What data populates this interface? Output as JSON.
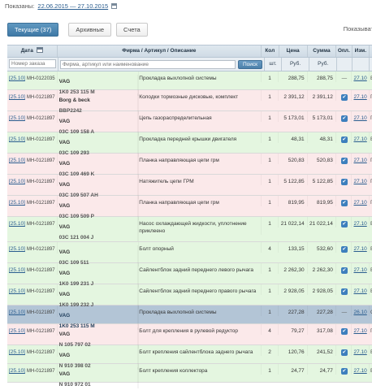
{
  "header": {
    "shown_label": "Показаны:",
    "date_range": "22.06.2015 — 27.10.2015",
    "show_right": "Показыват"
  },
  "tabs": [
    {
      "label": "Текущие (37)",
      "active": true
    },
    {
      "label": "Архивные",
      "active": false
    },
    {
      "label": "Счета",
      "active": false
    }
  ],
  "columns": {
    "date": "Дата",
    "name": "Фирма / Артикул / Описание",
    "qty": "Кол",
    "price": "Цена",
    "sum": "Сумма",
    "opl": "Опл.",
    "izm": "Изм."
  },
  "subheader": {
    "order_placeholder": "Номер заказа",
    "search_placeholder": "Фирма, артикул или наименование",
    "search_button": "Поиск",
    "qty_unit": "шт.",
    "price_unit": "Руб.",
    "sum_unit": "Руб."
  },
  "rows": [
    {
      "color": "green",
      "date": "[25.10]",
      "order": "МН-0122035",
      "brand": "VAG",
      "art": "1K0 253 115 M",
      "desc": "Прокладка выхлопной системы",
      "qty": "1",
      "price": "288,75",
      "sum": "288,75",
      "paid": false,
      "izm": "27.10",
      "st": "В"
    },
    {
      "color": "pink",
      "date": "[25.10]",
      "order": "МН-0121897",
      "brand": "Borg & beck",
      "art": "BBP2242",
      "desc": "Колодки тормозные дисковые, комплект",
      "qty": "1",
      "price": "2 391,12",
      "sum": "2 391,12",
      "paid": true,
      "izm": "27.10",
      "st": "П"
    },
    {
      "color": "pink",
      "date": "[25.10]",
      "order": "МН-0121897",
      "brand": "VAG",
      "art": "03C 109 158 A",
      "desc": "Цепь газораспределительная",
      "qty": "1",
      "price": "5 173,01",
      "sum": "5 173,01",
      "paid": true,
      "izm": "27.10",
      "st": "П"
    },
    {
      "color": "green",
      "date": "[25.10]",
      "order": "МН-0121897",
      "brand": "VAG",
      "art": "03C 109 293",
      "desc": "Прокладка передней крышки двигателя",
      "qty": "1",
      "price": "48,31",
      "sum": "48,31",
      "paid": true,
      "izm": "27.10",
      "st": "В"
    },
    {
      "color": "pink",
      "date": "[25.10]",
      "order": "МН-0121897",
      "brand": "VAG",
      "art": "03C 109 469 K",
      "desc": "Планка направляющая цепи грм",
      "qty": "1",
      "price": "520,83",
      "sum": "520,83",
      "paid": true,
      "izm": "27.10",
      "st": "П"
    },
    {
      "color": "pink",
      "date": "[25.10]",
      "order": "МН-0121897",
      "brand": "VAG",
      "art": "03C 109 507 AH",
      "desc": "Натяжитель цепи ГРМ",
      "qty": "1",
      "price": "5 122,85",
      "sum": "5 122,85",
      "paid": true,
      "izm": "27.10",
      "st": "П"
    },
    {
      "color": "pink",
      "date": "[25.10]",
      "order": "МН-0121897",
      "brand": "VAG",
      "art": "03C 109 509 P",
      "desc": "Планка направляющая цепи грм",
      "qty": "1",
      "price": "819,95",
      "sum": "819,95",
      "paid": true,
      "izm": "27.10",
      "st": "П"
    },
    {
      "color": "green",
      "date": "[25.10]",
      "order": "МН-0121897",
      "brand": "VAG",
      "art": "03C 121 004 J",
      "desc": "Насос охлаждающей жидкости, уплотнение приклеено",
      "qty": "1",
      "price": "21 022,14",
      "sum": "21 022,14",
      "paid": true,
      "izm": "27.10",
      "st": "В"
    },
    {
      "color": "green",
      "date": "[25.10]",
      "order": "МН-0121897",
      "brand": "VAG",
      "art": "03C 109 511",
      "desc": "Болт опорный",
      "qty": "4",
      "price": "133,15",
      "sum": "532,60",
      "paid": true,
      "izm": "27.10",
      "st": "В"
    },
    {
      "color": "green",
      "date": "[25.10]",
      "order": "МН-0121897",
      "brand": "VAG",
      "art": "1K0 199 231 J",
      "desc": "Сайлентблок задний переднего левого рычага",
      "qty": "1",
      "price": "2 262,30",
      "sum": "2 262,30",
      "paid": true,
      "izm": "27.10",
      "st": "В"
    },
    {
      "color": "green",
      "date": "[25.10]",
      "order": "МН-0121897",
      "brand": "VAG",
      "art": "1K0 199 232 J",
      "desc": "Сайлентблок задний переднего правого рычага",
      "qty": "1",
      "price": "2 928,05",
      "sum": "2 928,05",
      "paid": true,
      "izm": "27.10",
      "st": "В"
    },
    {
      "color": "sel",
      "date": "[25.10]",
      "order": "МН-0121897",
      "brand": "VAG",
      "art": "1K0 253 115 M",
      "desc": "Прокладка выхлопной системы",
      "qty": "1",
      "price": "227,28",
      "sum": "227,28",
      "paid": false,
      "izm": "26.10",
      "st": "О"
    },
    {
      "color": "pink",
      "date": "[25.10]",
      "order": "МН-0121897",
      "brand": "VAG",
      "art": "N 105 797 02",
      "desc": "Болт для крепления в рулевой редуктор",
      "qty": "4",
      "price": "79,27",
      "sum": "317,08",
      "paid": true,
      "izm": "27.10",
      "st": "П"
    },
    {
      "color": "green",
      "date": "[25.10]",
      "order": "МН-0121897",
      "brand": "VAG",
      "art": "N 910 398 02",
      "desc": "Болт крепления сайлентблока заднего рычага",
      "qty": "2",
      "price": "120,76",
      "sum": "241,52",
      "paid": true,
      "izm": "27.10",
      "st": "В"
    },
    {
      "color": "green",
      "date": "[25.10]",
      "order": "МН-0121897",
      "brand": "VAG",
      "art": "N 910 972 01",
      "desc": "Болт крепления коллектора",
      "qty": "1",
      "price": "24,77",
      "sum": "24,77",
      "paid": true,
      "izm": "27.10",
      "st": "В"
    }
  ]
}
